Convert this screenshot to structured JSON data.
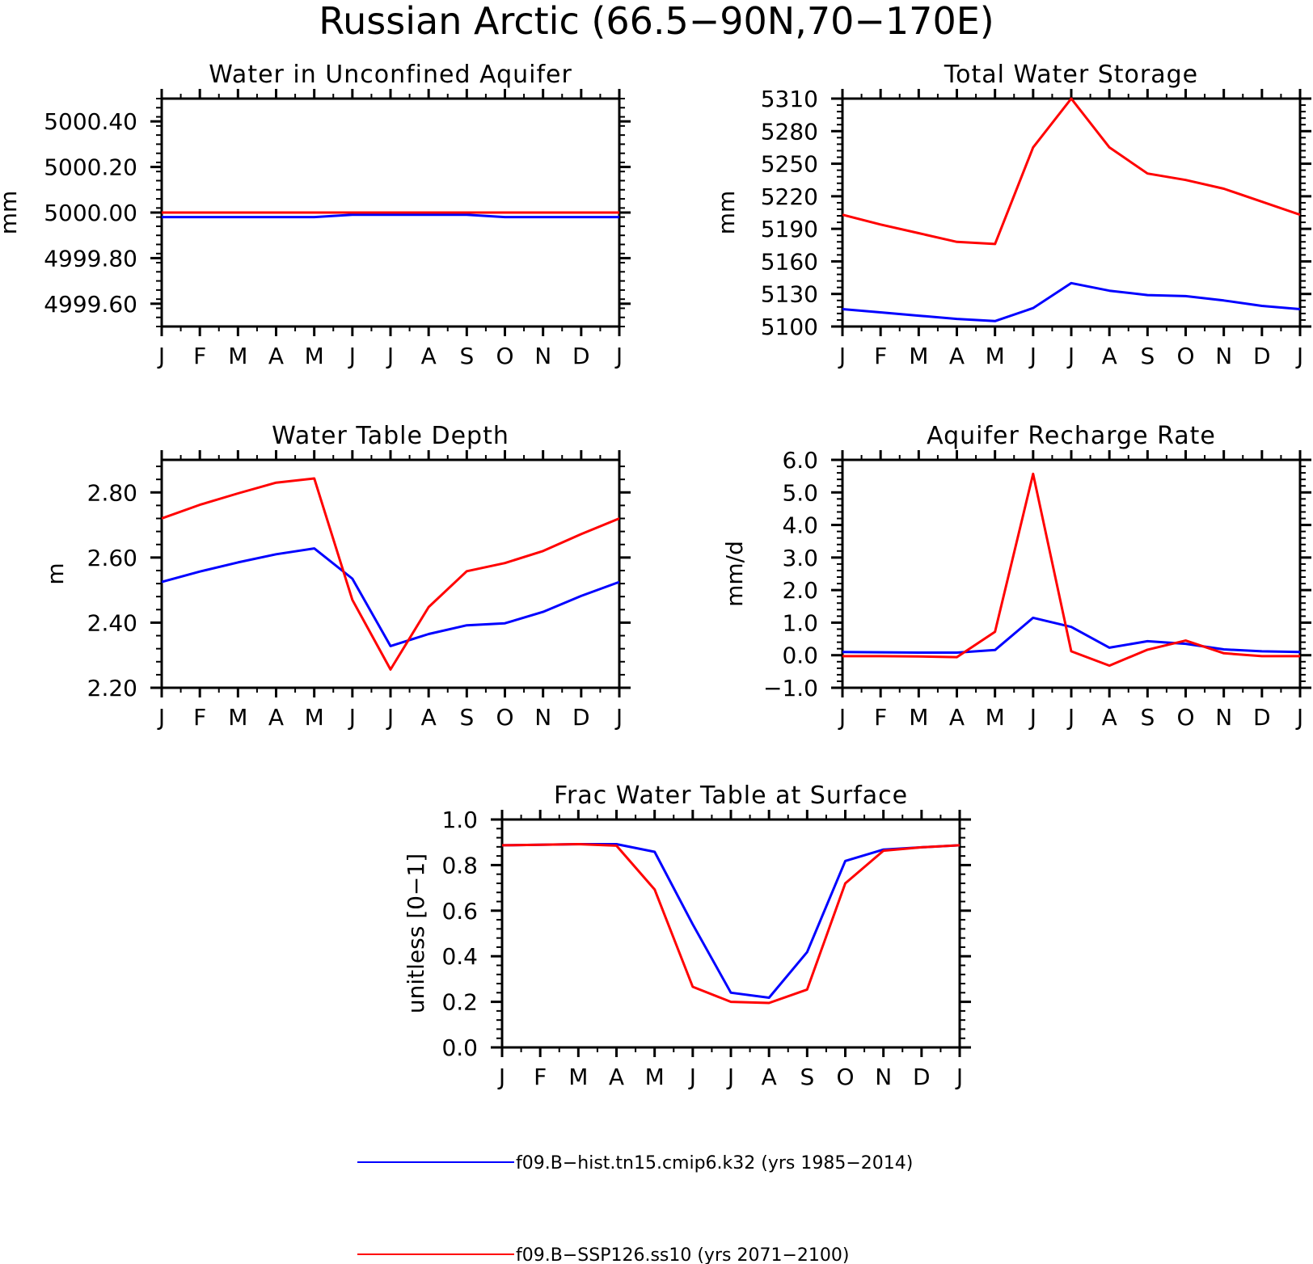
{
  "title": "Russian Arctic (66.5−90N,70−170E)",
  "month_ticks": [
    "J",
    "F",
    "M",
    "A",
    "M",
    "J",
    "J",
    "A",
    "S",
    "O",
    "N",
    "D",
    "J"
  ],
  "colors": {
    "hist": "#0000ff",
    "ssp": "#ff0000"
  },
  "legend": [
    {
      "label": "f09.B−hist.tn15.cmip6.k32 (yrs 1985−2014)",
      "color": "#0000ff"
    },
    {
      "label": "f09.B−SSP126.ss10 (yrs 2071−2100)",
      "color": "#ff0000"
    }
  ],
  "chart_data": [
    {
      "type": "line",
      "title": "Water in Unconfined Aquifer",
      "ylabel": "mm",
      "ylim": [
        4999.5,
        5000.5
      ],
      "yticks": [
        4999.6,
        4999.8,
        5000.0,
        5000.2,
        5000.4
      ],
      "ytick_labels": [
        "4999.60",
        "4999.80",
        "5000.00",
        "5000.20",
        "5000.40"
      ],
      "series": [
        {
          "name": "f09.B−hist.tn15.cmip6.k32 (yrs 1985−2014)",
          "color": "#0000ff",
          "values": [
            4999.98,
            4999.98,
            4999.98,
            4999.98,
            4999.98,
            4999.99,
            4999.99,
            4999.99,
            4999.99,
            4999.98,
            4999.98,
            4999.98,
            4999.98
          ]
        },
        {
          "name": "f09.B−SSP126.ss10 (yrs 2071−2100)",
          "color": "#ff0000",
          "values": [
            5000.0,
            5000.0,
            5000.0,
            5000.0,
            5000.0,
            5000.0,
            5000.0,
            5000.0,
            5000.0,
            5000.0,
            5000.0,
            5000.0,
            5000.0
          ]
        }
      ]
    },
    {
      "type": "line",
      "title": "Total Water Storage",
      "ylabel": "mm",
      "ylim": [
        5100,
        5310
      ],
      "yticks": [
        5100,
        5130,
        5160,
        5190,
        5220,
        5250,
        5280,
        5310
      ],
      "ytick_labels": [
        "5100",
        "5130",
        "5160",
        "5190",
        "5220",
        "5250",
        "5280",
        "5310"
      ],
      "series": [
        {
          "name": "f09.B−hist.tn15.cmip6.k32 (yrs 1985−2014)",
          "color": "#0000ff",
          "values": [
            5116,
            5113,
            5110,
            5107,
            5105,
            5117,
            5140,
            5133,
            5129,
            5128,
            5124,
            5119,
            5116
          ]
        },
        {
          "name": "f09.B−SSP126.ss10 (yrs 2071−2100)",
          "color": "#ff0000",
          "values": [
            5203,
            5194,
            5186,
            5178,
            5176,
            5265,
            5310,
            5265,
            5241,
            5235,
            5227,
            5215,
            5203
          ]
        }
      ]
    },
    {
      "type": "line",
      "title": "Water Table Depth",
      "ylabel": "m",
      "ylim": [
        2.2,
        2.9
      ],
      "yticks": [
        2.2,
        2.4,
        2.6,
        2.8
      ],
      "ytick_labels": [
        "2.20",
        "2.40",
        "2.60",
        "2.80"
      ],
      "series": [
        {
          "name": "f09.B−hist.tn15.cmip6.k32 (yrs 1985−2014)",
          "color": "#0000ff",
          "values": [
            2.525,
            2.557,
            2.585,
            2.61,
            2.628,
            2.535,
            2.328,
            2.365,
            2.392,
            2.398,
            2.433,
            2.482,
            2.525
          ]
        },
        {
          "name": "f09.B−SSP126.ss10 (yrs 2071−2100)",
          "color": "#ff0000",
          "values": [
            2.72,
            2.762,
            2.797,
            2.83,
            2.843,
            2.47,
            2.256,
            2.448,
            2.558,
            2.583,
            2.62,
            2.672,
            2.72
          ]
        }
      ]
    },
    {
      "type": "line",
      "title": "Aquifer Recharge Rate",
      "ylabel": "mm/d",
      "ylim": [
        -1.0,
        6.0
      ],
      "yticks": [
        -1.0,
        0.0,
        1.0,
        2.0,
        3.0,
        4.0,
        5.0,
        6.0
      ],
      "ytick_labels": [
        "−1.0",
        "0.0",
        "1.0",
        "2.0",
        "3.0",
        "4.0",
        "5.0",
        "6.0"
      ],
      "series": [
        {
          "name": "f09.B−hist.tn15.cmip6.k32 (yrs 1985−2014)",
          "color": "#0000ff",
          "values": [
            0.1,
            0.09,
            0.08,
            0.08,
            0.16,
            1.15,
            0.87,
            0.23,
            0.43,
            0.35,
            0.18,
            0.12,
            0.1
          ]
        },
        {
          "name": "f09.B−SSP126.ss10 (yrs 2071−2100)",
          "color": "#ff0000",
          "values": [
            -0.03,
            -0.03,
            -0.04,
            -0.06,
            0.72,
            5.57,
            0.12,
            -0.32,
            0.17,
            0.45,
            0.06,
            -0.03,
            -0.03
          ]
        }
      ]
    },
    {
      "type": "line",
      "title": "Frac Water Table at Surface",
      "ylabel": "unitless [0−1]",
      "ylim": [
        0.0,
        1.0
      ],
      "yticks": [
        0.0,
        0.2,
        0.4,
        0.6,
        0.8,
        1.0
      ],
      "ytick_labels": [
        "0.0",
        "0.2",
        "0.4",
        "0.6",
        "0.8",
        "1.0"
      ],
      "series": [
        {
          "name": "f09.B−hist.tn15.cmip6.k32 (yrs 1985−2014)",
          "color": "#0000ff",
          "values": [
            0.887,
            0.889,
            0.892,
            0.892,
            0.858,
            0.54,
            0.24,
            0.218,
            0.418,
            0.818,
            0.868,
            0.878,
            0.887
          ]
        },
        {
          "name": "f09.B−SSP126.ss10 (yrs 2071−2100)",
          "color": "#ff0000",
          "values": [
            0.887,
            0.889,
            0.892,
            0.885,
            0.693,
            0.266,
            0.2,
            0.195,
            0.254,
            0.72,
            0.863,
            0.878,
            0.887
          ]
        }
      ]
    }
  ]
}
